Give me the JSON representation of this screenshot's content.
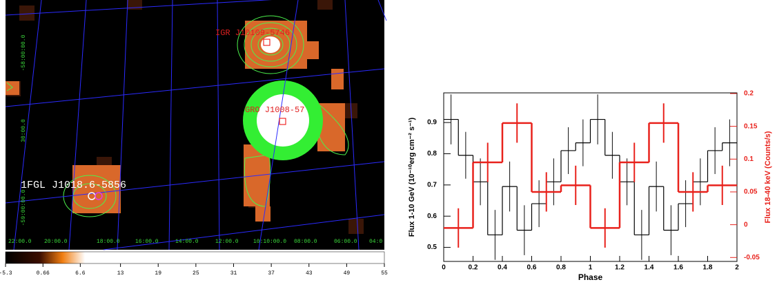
{
  "chart_data": [
    {
      "type": "image",
      "sources": [
        "IGR J10109-5746",
        "GRO J1008-57",
        "1FGL J1018.6-5856"
      ],
      "ra_labels": [
        "22:00.0",
        "20:00.0",
        "18:00.0",
        "16:00.0",
        "14:00.0",
        "12:00.0",
        "10:10:00.0",
        "08:00.0",
        "06:00.0",
        "04:0"
      ],
      "dec_labels": [
        "-58:00:00.0",
        "30:00.0",
        "-59:00:00.0"
      ],
      "xlim": [
        -5.3,
        55
      ],
      "xticks": [
        -5.3,
        0.66,
        6.6,
        13,
        19,
        25,
        31,
        37,
        43,
        49,
        55
      ]
    },
    {
      "type": "step",
      "xlabel": "Phase",
      "ylabel": "Flux  1-10 GeV (10⁻¹⁰erg cm⁻² s⁻¹)",
      "y2label": "Flux  18-40 keV (Counts/s)",
      "xlim": [
        0,
        2
      ],
      "xticks": [
        0,
        0.2,
        0.4,
        0.6,
        0.8,
        1,
        1.2,
        1.4,
        1.6,
        1.8,
        2
      ],
      "ylim": [
        0.455,
        0.995
      ],
      "yticks": [
        0.5,
        0.6,
        0.7,
        0.8,
        0.9
      ],
      "y2lim": [
        -0.056,
        0.201
      ],
      "y2ticks": [
        -0.05,
        0,
        0.05,
        0.1,
        0.15,
        0.2
      ],
      "series": [
        {
          "color": "#000000",
          "bins": [
            0,
            0.1,
            0.2,
            0.3,
            0.4,
            0.5,
            0.6,
            0.7,
            0.8,
            0.9,
            1,
            1.1,
            1.2,
            1.3,
            1.4,
            1.5,
            1.6,
            1.7,
            1.8,
            1.9,
            2
          ],
          "values": [
            0.91,
            0.795,
            0.71,
            0.54,
            0.695,
            0.555,
            0.64,
            0.71,
            0.81,
            0.835,
            0.91,
            0.795,
            0.71,
            0.54,
            0.695,
            0.555,
            0.64,
            0.71,
            0.81,
            0.835
          ],
          "errors": [
            0.08,
            0.075,
            0.075,
            0.08,
            0.08,
            0.08,
            0.075,
            0.075,
            0.075,
            0.075,
            0.08,
            0.075,
            0.075,
            0.08,
            0.08,
            0.08,
            0.075,
            0.075,
            0.075,
            0.075
          ]
        },
        {
          "color": "#e8211b",
          "axis": "y2",
          "bins": [
            0,
            0.2,
            0.4,
            0.6,
            0.8,
            1,
            1.2,
            1.4,
            1.6,
            1.8,
            2
          ],
          "values": [
            -0.005,
            0.095,
            0.155,
            0.05,
            0.06,
            -0.005,
            0.095,
            0.155,
            0.05,
            0.06
          ],
          "errors": [
            0.03,
            0.03,
            0.03,
            0.03,
            0.03,
            0.03,
            0.03,
            0.03,
            0.03,
            0.03
          ]
        }
      ]
    }
  ]
}
